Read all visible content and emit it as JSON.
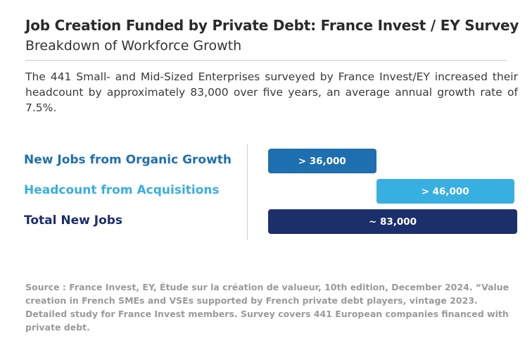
{
  "header": {
    "title": "Job Creation Funded by Private Debt: France Invest / EY Survey",
    "subtitle": "Breakdown of Workforce Growth"
  },
  "intro": "The 441 Small- and Mid-Sized Enterprises surveyed by France Invest/EY  increased their headcount by approximately 83,000 over five years, an average annual growth rate of 7.5%.",
  "chart_data": {
    "type": "bar",
    "orientation": "horizontal",
    "layout": "waterfall",
    "categories": [
      "New Jobs from Organic Growth",
      "Headcount from Acquisitions",
      "Total New Jobs"
    ],
    "values": [
      36000,
      46000,
      83000
    ],
    "data_labels": [
      "> 36,000",
      "> 46,000",
      "~ 83,000"
    ],
    "colors": [
      "#1e6fb0",
      "#38afe1",
      "#1b2f6b"
    ],
    "xlim": [
      0,
      83000
    ]
  },
  "source": "Source : France Invest, EY, Étude sur la création de valueur, 10th edition, December 2024. “Value creation in French SMEs  and VSEs supported by French private debt players, vintage 2023. Detailed study for France Invest members. Survey covers 441 European companies financed with private debt."
}
